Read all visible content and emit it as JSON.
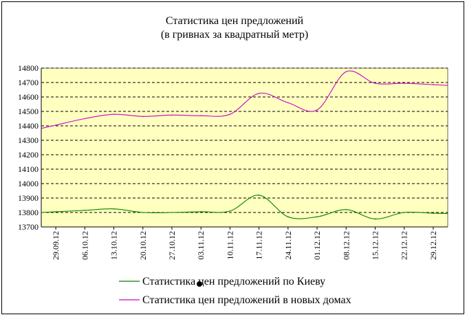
{
  "chart_data": {
    "type": "line",
    "title": [
      "Статистика цен предложений",
      "(в гривнах за квадратный метр)"
    ],
    "xlabel": "",
    "ylabel": "",
    "ylim": [
      13700,
      14800
    ],
    "yticks": [
      13700,
      13800,
      13900,
      14000,
      14100,
      14200,
      14300,
      14400,
      14500,
      14600,
      14700,
      14800
    ],
    "x": [
      "29.09.12",
      "06.10.12",
      "13.10.12",
      "20.10.12",
      "27.10.12",
      "03.11.12",
      "10.11.12",
      "17.11.12",
      "24.11.12",
      "01.12.12",
      "08.12.12",
      "15.12.12",
      "22.12.12",
      "29.12.12"
    ],
    "grid": "horizontal-dashed",
    "background": "#ffffc0",
    "legend_position": "bottom",
    "series": [
      {
        "name": "Статистика цен предложений по Киеву",
        "color": "#008000",
        "values": [
          13805,
          13815,
          13825,
          13800,
          13800,
          13805,
          13810,
          13920,
          13770,
          13770,
          13820,
          13755,
          13800,
          13795
        ]
      },
      {
        "name": "Статистика цен предложений в новых домах",
        "color": "#cc00cc",
        "values": [
          14405,
          14450,
          14480,
          14465,
          14475,
          14470,
          14480,
          14625,
          14560,
          14510,
          14775,
          14695,
          14695,
          14685
        ]
      }
    ]
  }
}
